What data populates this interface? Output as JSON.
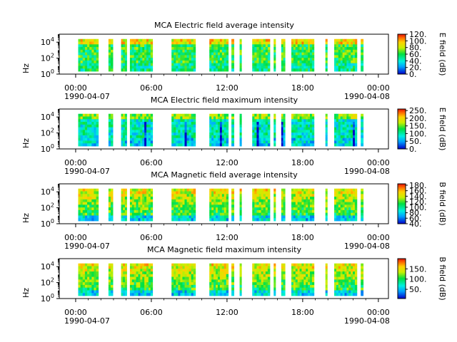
{
  "chart_data": [
    {
      "type": "heatmap",
      "title": "MCA  Electric field average intensity",
      "ylabel": "Hz",
      "yscale": "log",
      "ylim": [
        1,
        100000
      ],
      "y_ticks": [
        {
          "exp": 0,
          "label_base": "10",
          "label_exp": "0"
        },
        {
          "exp": 2,
          "label_base": "10",
          "label_exp": "2"
        },
        {
          "exp": 4,
          "label_base": "10",
          "label_exp": "4"
        }
      ],
      "x_ticks": [
        {
          "hour": 0,
          "label": "00:00"
        },
        {
          "hour": 6,
          "label": "06:00"
        },
        {
          "hour": 12,
          "label": "12:00"
        },
        {
          "hour": 18,
          "label": "18:00"
        },
        {
          "hour": 24,
          "label": "00:00"
        }
      ],
      "date_labels": {
        "start": "1990-04-07",
        "end": "1990-04-08"
      },
      "colorbar_label": "E field (dB)",
      "colorbar_range": [
        0,
        120
      ],
      "colorbar_ticks": [
        "0.",
        "20.",
        "40.",
        "60.",
        "80.",
        "100.",
        "120."
      ],
      "colorbar_tick_values": [
        0,
        20,
        40,
        60,
        80,
        100,
        120
      ],
      "level": 0.5
    },
    {
      "type": "heatmap",
      "title": "MCA  Electric field maximum intensity",
      "ylabel": "Hz",
      "yscale": "log",
      "ylim": [
        1,
        100000
      ],
      "y_ticks": [
        {
          "exp": 0,
          "label_base": "10",
          "label_exp": "0"
        },
        {
          "exp": 2,
          "label_base": "10",
          "label_exp": "2"
        },
        {
          "exp": 4,
          "label_base": "10",
          "label_exp": "4"
        }
      ],
      "x_ticks": [
        {
          "hour": 0,
          "label": "00:00"
        },
        {
          "hour": 6,
          "label": "06:00"
        },
        {
          "hour": 12,
          "label": "12:00"
        },
        {
          "hour": 18,
          "label": "18:00"
        },
        {
          "hour": 24,
          "label": "00:00"
        }
      ],
      "date_labels": {
        "start": "1990-04-07",
        "end": "1990-04-08"
      },
      "colorbar_label": "E field (dB)",
      "colorbar_range": [
        0,
        260
      ],
      "colorbar_ticks": [
        "0.",
        "50.",
        "100.",
        "150.",
        "200.",
        "250."
      ],
      "colorbar_tick_values": [
        0,
        50,
        100,
        150,
        200,
        250
      ],
      "level": 0.36
    },
    {
      "type": "heatmap",
      "title": "MCA  Magnetic field average intensity",
      "ylabel": "Hz",
      "yscale": "log",
      "ylim": [
        1,
        100000
      ],
      "y_ticks": [
        {
          "exp": 0,
          "label_base": "10",
          "label_exp": "0"
        },
        {
          "exp": 2,
          "label_base": "10",
          "label_exp": "2"
        },
        {
          "exp": 4,
          "label_base": "10",
          "label_exp": "4"
        }
      ],
      "x_ticks": [
        {
          "hour": 0,
          "label": "00:00"
        },
        {
          "hour": 6,
          "label": "06:00"
        },
        {
          "hour": 12,
          "label": "12:00"
        },
        {
          "hour": 18,
          "label": "18:00"
        },
        {
          "hour": 24,
          "label": "00:00"
        }
      ],
      "date_labels": {
        "start": "1990-04-07",
        "end": "1990-04-08"
      },
      "colorbar_label": "B field (dB)",
      "colorbar_range": [
        40,
        185
      ],
      "colorbar_ticks": [
        "40.",
        "60.",
        "80.",
        "100.",
        "120.",
        "140.",
        "160.",
        "180."
      ],
      "colorbar_tick_values": [
        40,
        60,
        80,
        100,
        120,
        140,
        160,
        180
      ],
      "level": 0.45
    },
    {
      "type": "heatmap",
      "title": "MCA  Magnetic field maximum intensity",
      "ylabel": "Hz",
      "yscale": "log",
      "ylim": [
        1,
        100000
      ],
      "y_ticks": [
        {
          "exp": 0,
          "label_base": "10",
          "label_exp": "0"
        },
        {
          "exp": 2,
          "label_base": "10",
          "label_exp": "2"
        },
        {
          "exp": 4,
          "label_base": "10",
          "label_exp": "4"
        }
      ],
      "x_ticks": [
        {
          "hour": 0,
          "label": "00:00"
        },
        {
          "hour": 6,
          "label": "06:00"
        },
        {
          "hour": 12,
          "label": "12:00"
        },
        {
          "hour": 18,
          "label": "18:00"
        },
        {
          "hour": 24,
          "label": "00:00"
        }
      ],
      "date_labels": {
        "start": "1990-04-07",
        "end": "1990-04-08"
      },
      "colorbar_label": "B field (dB)",
      "colorbar_range": [
        5,
        200
      ],
      "colorbar_ticks": [
        "50.",
        "100.",
        "150."
      ],
      "colorbar_tick_values": [
        50,
        100,
        150
      ],
      "level": 0.45
    }
  ],
  "data_segments_hours": [
    [
      0.2,
      1.8
    ],
    [
      2.6,
      2.95
    ],
    [
      3.6,
      4.05
    ],
    [
      4.3,
      6.1
    ],
    [
      7.6,
      9.5
    ],
    [
      10.6,
      12.1
    ],
    [
      12.35,
      12.55
    ],
    [
      13.0,
      13.15
    ],
    [
      14.0,
      15.4
    ],
    [
      15.7,
      15.85
    ],
    [
      16.3,
      16.6
    ],
    [
      17.1,
      18.9
    ],
    [
      19.8,
      19.95
    ],
    [
      20.5,
      22.3
    ],
    [
      22.6,
      22.8
    ]
  ]
}
